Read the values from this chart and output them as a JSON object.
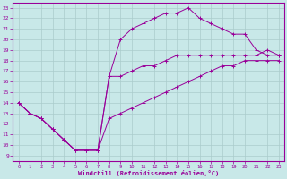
{
  "bg_color": "#c8e8e8",
  "line_color": "#990099",
  "grid_color": "#aacccc",
  "xlabel": "Windchill (Refroidissement éolien,°C)",
  "xlim": [
    -0.5,
    23.5
  ],
  "ylim": [
    8.5,
    23.5
  ],
  "xticks": [
    0,
    1,
    2,
    3,
    4,
    5,
    6,
    7,
    8,
    9,
    10,
    11,
    12,
    13,
    14,
    15,
    16,
    17,
    18,
    19,
    20,
    21,
    22,
    23
  ],
  "yticks": [
    9,
    10,
    11,
    12,
    13,
    14,
    15,
    16,
    17,
    18,
    19,
    20,
    21,
    22,
    23
  ],
  "curve1_x": [
    0,
    1,
    2,
    3,
    4,
    5,
    6,
    7,
    8,
    9,
    10,
    11,
    12,
    13,
    14,
    15,
    16,
    17,
    18,
    19,
    20,
    21,
    22,
    23
  ],
  "curve1_y": [
    14,
    13,
    12.5,
    11.5,
    10.5,
    9.5,
    9.5,
    9.5,
    12.5,
    13,
    13.5,
    14,
    14.5,
    15,
    15.5,
    16,
    16.5,
    17,
    17.5,
    17.5,
    18,
    18,
    18,
    18
  ],
  "curve2_x": [
    0,
    1,
    2,
    3,
    4,
    5,
    6,
    7,
    8,
    9,
    10,
    11,
    12,
    13,
    14,
    15,
    16,
    17,
    18,
    19,
    20,
    21,
    22,
    23
  ],
  "curve2_y": [
    14,
    13,
    12.5,
    11.5,
    10.5,
    9.5,
    9.5,
    9.5,
    16.5,
    20,
    21,
    21.5,
    22,
    22.5,
    22.5,
    23,
    22,
    21.5,
    21,
    20.5,
    20.5,
    19,
    18.5,
    18.5
  ],
  "curve3_x": [
    0,
    1,
    2,
    3,
    4,
    5,
    6,
    7,
    8,
    9,
    10,
    11,
    12,
    13,
    14,
    15,
    16,
    17,
    18,
    19,
    20,
    21,
    22,
    23
  ],
  "curve3_y": [
    14,
    13,
    12.5,
    11.5,
    10.5,
    9.5,
    9.5,
    9.5,
    16.5,
    16.5,
    17,
    17.5,
    17.5,
    18,
    18.5,
    18.5,
    18.5,
    18.5,
    18.5,
    18.5,
    18.5,
    18.5,
    19,
    18.5
  ]
}
